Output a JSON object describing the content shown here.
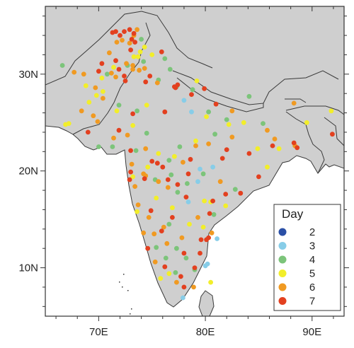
{
  "map": {
    "colors": {
      "ocean": "#ffffff",
      "land": "#cfcfcf",
      "border": "#3a3a3a",
      "frame": "#333333"
    },
    "lon_range": [
      65,
      93
    ],
    "lat_range": [
      5,
      37
    ],
    "x_ticks": [
      {
        "value": 70,
        "label": "70E"
      },
      {
        "value": 80,
        "label": "80E"
      },
      {
        "value": 90,
        "label": "90E"
      }
    ],
    "y_ticks": [
      {
        "value": 10,
        "label": "10N"
      },
      {
        "value": 20,
        "label": "20N"
      },
      {
        "value": 30,
        "label": "30N"
      }
    ],
    "legend": {
      "title": "Day",
      "placement": "bottom-right",
      "entries": [
        {
          "label": "2",
          "color": "#2a4fa6"
        },
        {
          "label": "3",
          "color": "#87cde8"
        },
        {
          "label": "4",
          "color": "#7cc47a"
        },
        {
          "label": "5",
          "color": "#f2ee2a"
        },
        {
          "label": "6",
          "color": "#f09a22"
        },
        {
          "label": "7",
          "color": "#e3401f"
        }
      ]
    }
  },
  "chart_data": {
    "type": "scatter",
    "xlabel": "",
    "ylabel": "",
    "xlim": [
      65,
      93
    ],
    "ylim": [
      5,
      37
    ],
    "series": [
      {
        "name": "2",
        "points": []
      },
      {
        "name": "3",
        "points": [
          [
            78.0,
            27.3
          ],
          [
            78.7,
            26.1
          ],
          [
            79.5,
            20.2
          ],
          [
            80.7,
            20.4
          ],
          [
            78.4,
            16.8
          ],
          [
            80.2,
            10.4
          ],
          [
            81.1,
            13.0
          ],
          [
            79.3,
            18.9
          ],
          [
            77.9,
            6.9
          ],
          [
            80.0,
            10.2
          ]
        ]
      },
      {
        "name": "4",
        "points": [
          [
            76.2,
            31.6
          ],
          [
            74.0,
            33.6
          ],
          [
            74.2,
            31.3
          ],
          [
            72.7,
            30.9
          ],
          [
            75.6,
            29.4
          ],
          [
            76.7,
            30.5
          ],
          [
            77.3,
            28.7
          ],
          [
            78.8,
            28.4
          ],
          [
            80.3,
            26.1
          ],
          [
            82.0,
            25.3
          ],
          [
            84.1,
            27.7
          ],
          [
            85.4,
            24.9
          ],
          [
            80.9,
            23.8
          ],
          [
            77.6,
            22.5
          ],
          [
            74.5,
            23.9
          ],
          [
            73.5,
            22.1
          ],
          [
            71.3,
            22.5
          ],
          [
            70.0,
            22.5
          ],
          [
            76.8,
            19.6
          ],
          [
            77.4,
            17.8
          ],
          [
            78.3,
            18.7
          ],
          [
            79.8,
            19.7
          ],
          [
            75.3,
            19.1
          ],
          [
            76.6,
            21.1
          ],
          [
            73.6,
            26.2
          ],
          [
            71.9,
            26.8
          ],
          [
            70.8,
            30.0
          ],
          [
            76.6,
            14.5
          ],
          [
            77.3,
            12.0
          ],
          [
            75.4,
            12.1
          ],
          [
            78.2,
            11.0
          ],
          [
            79.0,
            9.8
          ],
          [
            80.8,
            15.5
          ],
          [
            82.8,
            18.1
          ],
          [
            76.3,
            11.0
          ],
          [
            77.2,
            9.5
          ],
          [
            66.6,
            30.9
          ]
        ]
      },
      {
        "name": "5",
        "points": [
          [
            73.3,
            31.8
          ],
          [
            73.7,
            31.8
          ],
          [
            74.3,
            32.8
          ],
          [
            71.4,
            30.7
          ],
          [
            70.3,
            29.6
          ],
          [
            69.8,
            27.8
          ],
          [
            70.4,
            28.2
          ],
          [
            68.8,
            28.8
          ],
          [
            69.1,
            27.1
          ],
          [
            71.7,
            26.2
          ],
          [
            73.2,
            24.7
          ],
          [
            74.5,
            26.8
          ],
          [
            79.2,
            29.3
          ],
          [
            80.1,
            25.6
          ],
          [
            83.6,
            25.0
          ],
          [
            79.1,
            23.1
          ],
          [
            77.1,
            21.5
          ],
          [
            75.6,
            21.8
          ],
          [
            74.6,
            20.4
          ],
          [
            73.2,
            19.4
          ],
          [
            75.4,
            17.2
          ],
          [
            76.9,
            16.2
          ],
          [
            78.5,
            14.5
          ],
          [
            79.9,
            16.9
          ],
          [
            80.5,
            16.8
          ],
          [
            81.9,
            16.4
          ],
          [
            85.8,
            20.4
          ],
          [
            84.9,
            22.3
          ],
          [
            82.2,
            24.8
          ],
          [
            76.6,
            9.4
          ],
          [
            80.5,
            8.5
          ],
          [
            75.8,
            8.9
          ],
          [
            79.8,
            14.2
          ],
          [
            73.6,
            15.8
          ],
          [
            66.9,
            24.8
          ],
          [
            67.2,
            24.9
          ],
          [
            91.8,
            26.2
          ],
          [
            89.5,
            25.0
          ],
          [
            86.9,
            22.3
          ],
          [
            73.9,
            32.3
          ],
          [
            75.0,
            32.0
          ]
        ]
      },
      {
        "name": "6",
        "points": [
          [
            71.0,
            32.2
          ],
          [
            71.7,
            33.3
          ],
          [
            72.2,
            33.5
          ],
          [
            72.6,
            31.1
          ],
          [
            73.2,
            30.9
          ],
          [
            71.2,
            30.1
          ],
          [
            71.6,
            29.7
          ],
          [
            73.2,
            30.5
          ],
          [
            73.8,
            30.4
          ],
          [
            74.3,
            30.6
          ],
          [
            75.5,
            29.1
          ],
          [
            72.9,
            33.2
          ],
          [
            73.3,
            34.0
          ],
          [
            73.6,
            34.6
          ],
          [
            68.6,
            30.0
          ],
          [
            67.7,
            30.2
          ],
          [
            69.7,
            28.6
          ],
          [
            70.4,
            27.5
          ],
          [
            68.4,
            26.2
          ],
          [
            69.5,
            25.7
          ],
          [
            69.9,
            25.1
          ],
          [
            71.4,
            23.4
          ],
          [
            72.7,
            23.7
          ],
          [
            74.4,
            22.3
          ],
          [
            73.1,
            20.7
          ],
          [
            74.2,
            19.7
          ],
          [
            75.6,
            18.9
          ],
          [
            76.5,
            18.3
          ],
          [
            77.9,
            20.9
          ],
          [
            79.1,
            22.6
          ],
          [
            80.3,
            22.8
          ],
          [
            82.5,
            26.2
          ],
          [
            86.5,
            23.3
          ],
          [
            85.8,
            24.2
          ],
          [
            88.4,
            22.6
          ],
          [
            88.3,
            27.0
          ],
          [
            81.4,
            18.9
          ],
          [
            79.3,
            15.2
          ],
          [
            76.1,
            14.2
          ],
          [
            74.7,
            15.2
          ],
          [
            74.2,
            13.6
          ],
          [
            75.2,
            13.5
          ],
          [
            77.8,
            13.1
          ],
          [
            76.4,
            12.5
          ],
          [
            75.3,
            10.6
          ],
          [
            77.3,
            8.5
          ],
          [
            78.9,
            8.0
          ],
          [
            80.6,
            13.6
          ],
          [
            82.5,
            23.5
          ],
          [
            74.4,
            19.5
          ],
          [
            73.4,
            18.4
          ],
          [
            73.7,
            16.5
          ]
        ]
      },
      {
        "name": "7",
        "points": [
          [
            71.3,
            34.3
          ],
          [
            71.6,
            34.4
          ],
          [
            72.0,
            34.0
          ],
          [
            72.4,
            34.4
          ],
          [
            72.9,
            34.6
          ],
          [
            73.3,
            34.2
          ],
          [
            73.1,
            33.6
          ],
          [
            73.4,
            33.3
          ],
          [
            73.0,
            32.5
          ],
          [
            71.6,
            31.4
          ],
          [
            71.9,
            30.5
          ],
          [
            72.4,
            29.8
          ],
          [
            72.5,
            29.3
          ],
          [
            70.0,
            30.3
          ],
          [
            70.3,
            31.1
          ],
          [
            74.4,
            29.2
          ],
          [
            74.8,
            29.8
          ],
          [
            75.9,
            32.3
          ],
          [
            77.1,
            28.7
          ],
          [
            77.2,
            28.6
          ],
          [
            77.4,
            28.9
          ],
          [
            78.7,
            27.9
          ],
          [
            79.9,
            28.5
          ],
          [
            81.0,
            26.9
          ],
          [
            76.2,
            26.1
          ],
          [
            73.2,
            25.9
          ],
          [
            71.9,
            24.2
          ],
          [
            69.0,
            24.0
          ],
          [
            73.0,
            22.1
          ],
          [
            75.0,
            21.0
          ],
          [
            74.3,
            19.2
          ],
          [
            73.0,
            19.9
          ],
          [
            72.9,
            19.1
          ],
          [
            76.0,
            20.4
          ],
          [
            76.5,
            19.1
          ],
          [
            77.4,
            18.6
          ],
          [
            78.4,
            19.7
          ],
          [
            78.6,
            21.2
          ],
          [
            81.6,
            21.3
          ],
          [
            82.0,
            22.2
          ],
          [
            84.1,
            21.8
          ],
          [
            83.3,
            17.7
          ],
          [
            81.9,
            17.6
          ],
          [
            80.4,
            15.6
          ],
          [
            79.6,
            12.9
          ],
          [
            79.5,
            11.5
          ],
          [
            80.1,
            12.9
          ],
          [
            76.9,
            15.2
          ],
          [
            74.9,
            15.9
          ],
          [
            75.9,
            13.8
          ],
          [
            74.6,
            12.0
          ],
          [
            78.0,
            11.5
          ],
          [
            76.2,
            10.1
          ],
          [
            77.7,
            9.1
          ],
          [
            78.0,
            8.0
          ],
          [
            85.0,
            19.4
          ],
          [
            86.3,
            22.6
          ],
          [
            88.3,
            22.9
          ],
          [
            88.6,
            22.4
          ],
          [
            91.9,
            23.8
          ],
          [
            80.7,
            16.9
          ],
          [
            79.0,
            10.0
          ],
          [
            78.2,
            17.3
          ],
          [
            75.5,
            20.8
          ],
          [
            80.3,
            13.1
          ]
        ]
      }
    ]
  }
}
